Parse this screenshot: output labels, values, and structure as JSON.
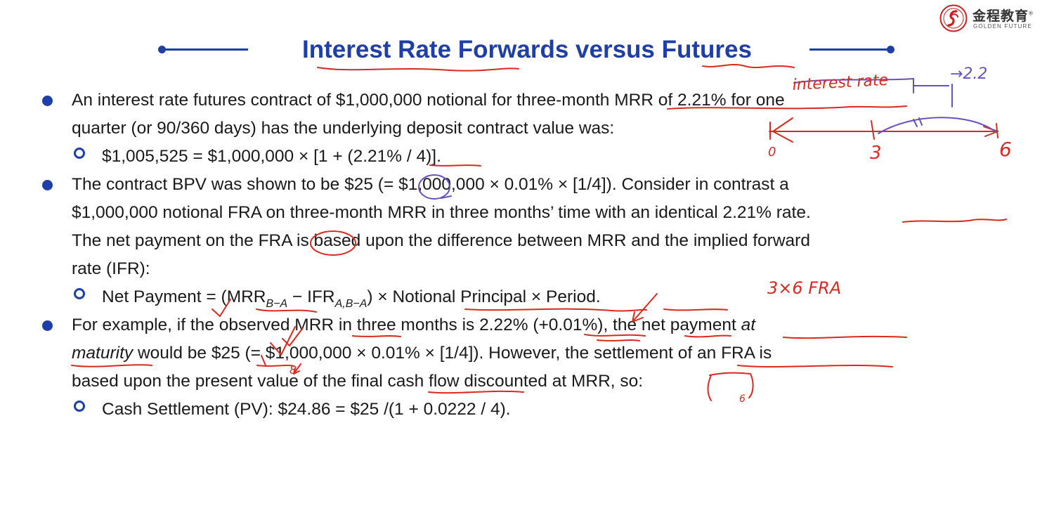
{
  "logo": {
    "chinese_name": "金程教育",
    "english_name": "GOLDEN FUTURE",
    "registered_mark": "®"
  },
  "title": "Interest Rate Forwards versus Futures",
  "content": {
    "p1": {
      "line1": "An interest rate futures contract of $1,000,000 notional for three-month MRR of 2.21% for one",
      "line2": "quarter (or 90/360 days) has the underlying deposit contract value was:",
      "sub1": "$1,005,525 = $1,000,000 × [1 + (2.21% / 4)]."
    },
    "p2": {
      "line1": "The contract BPV was shown to be $25 (= $1,000,000 × 0.01% × [1/4]). Consider in contrast a",
      "line2": "$1,000,000 notional FRA on three-month MRR in three months’ time with an identical 2.21% rate.",
      "line3": "The net payment on the FRA is based upon the difference between MRR and the implied forward",
      "line4": "rate (IFR):",
      "sub": {
        "prefix": "Net Payment = (MRR",
        "sub_a": "B−A",
        "middle": " − IFR",
        "sub_b": "A,B−A",
        "suffix": ") × Notional Principal × Period."
      }
    },
    "p3": {
      "line1": "For example, if the observed MRR in three months is 2.22% (+0.01%), the net payment ",
      "line1_italic": "at",
      "line2_italic": "maturity",
      "line2": " would be $25 (= $1,000,000 × 0.01% × [1/4]). However, the settlement of an FRA is",
      "line3": "based upon the present value of the final cash flow discounted at MRR, so:",
      "sub1": "Cash Settlement (PV): $24.86 = $25 /(1 + 0.0222 / 4)."
    }
  },
  "handwriting": {
    "label_interest_rate": "interest rate",
    "arrow_note": "→2.2",
    "t0": "0",
    "t3": "3",
    "t6": "6",
    "fra_label": "3×6 FRA",
    "ink_red": "#d92a1f",
    "ink_purple": "#6a4fc0"
  },
  "colors": {
    "brand_blue": "#1f3fa8",
    "text": "#1a1a1a",
    "logo_red": "#c8201f"
  }
}
